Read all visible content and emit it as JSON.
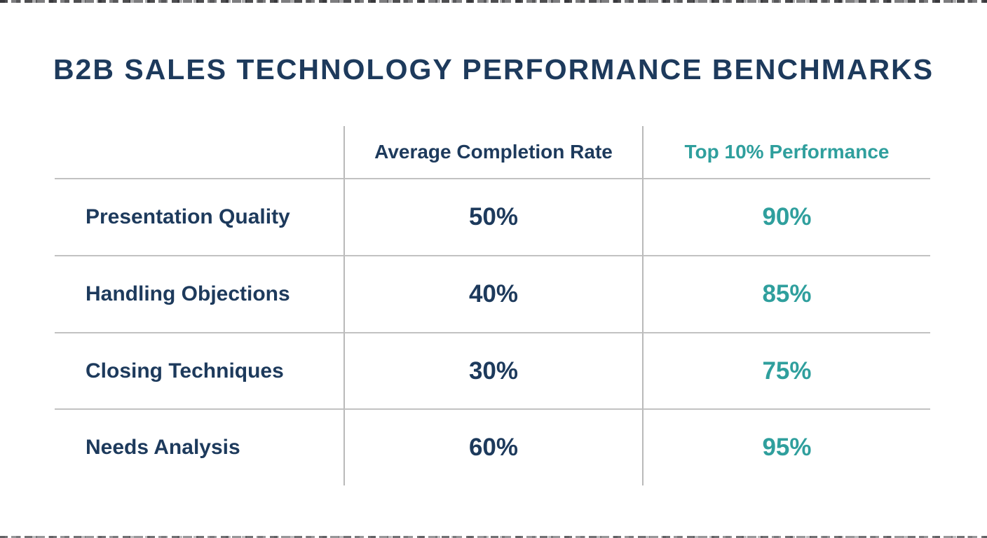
{
  "title": "B2B SALES TECHNOLOGY PERFORMANCE BENCHMARKS",
  "table": {
    "columns": {
      "metric": "",
      "average": "Average Completion Rate",
      "top": "Top 10% Performance"
    },
    "rows": [
      {
        "label": "Presentation Quality",
        "avg": "50%",
        "top": "90%"
      },
      {
        "label": "Handling Objections",
        "avg": "40%",
        "top": "85%"
      },
      {
        "label": "Closing Techniques",
        "avg": "30%",
        "top": "75%"
      },
      {
        "label": "Needs Analysis",
        "avg": "60%",
        "top": "95%"
      }
    ]
  },
  "colors": {
    "navy": "#1d3a5c",
    "teal": "#2f9f9d",
    "divider": "#c2c2c2",
    "background": "#ffffff"
  },
  "chart_data": {
    "type": "table",
    "title": "B2B SALES TECHNOLOGY PERFORMANCE BENCHMARKS",
    "categories": [
      "Presentation Quality",
      "Handling Objections",
      "Closing Techniques",
      "Needs Analysis"
    ],
    "series": [
      {
        "name": "Average Completion Rate",
        "values": [
          50,
          40,
          30,
          60
        ],
        "unit": "%"
      },
      {
        "name": "Top 10% Performance",
        "values": [
          90,
          85,
          75,
          95
        ],
        "unit": "%"
      }
    ],
    "legend_position": "column-headers",
    "grid": "partial-dividers"
  }
}
